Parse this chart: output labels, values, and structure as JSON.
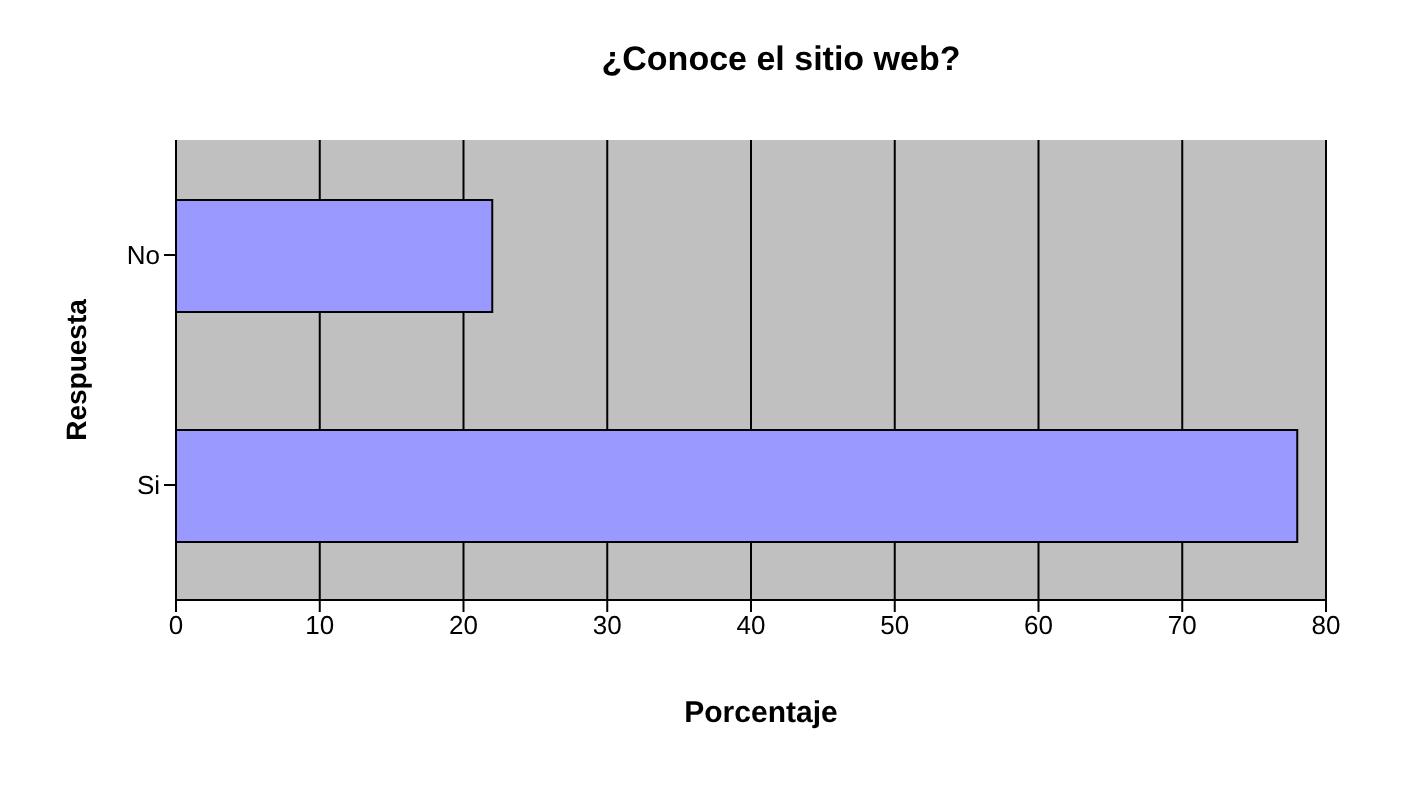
{
  "chart_data": {
    "type": "bar",
    "orientation": "horizontal",
    "title": "¿Conoce el sitio web?",
    "xlabel": "Porcentaje",
    "ylabel": "Respuesta",
    "categories": [
      "No",
      "Si"
    ],
    "values": [
      22,
      78
    ],
    "color": "#9999ff",
    "xlim": [
      0,
      80
    ],
    "xticks": [
      0,
      10,
      20,
      30,
      40,
      50,
      60,
      70,
      80
    ],
    "grid": "x"
  }
}
